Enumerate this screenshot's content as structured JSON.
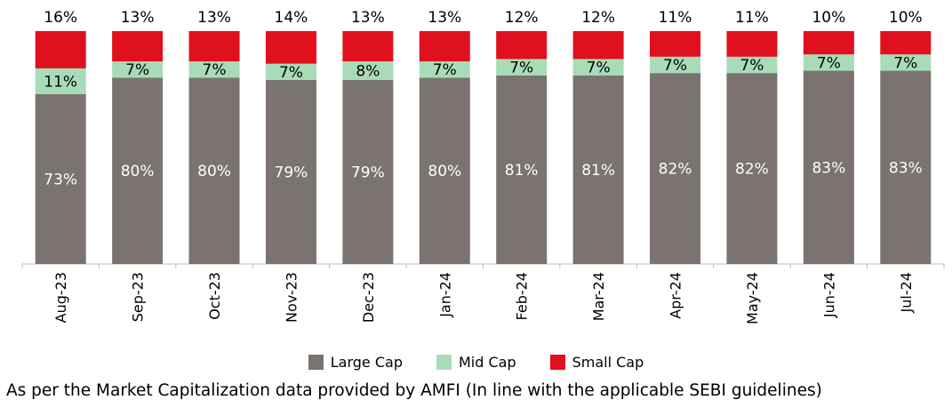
{
  "chart_data": {
    "type": "bar",
    "stacked": true,
    "categories": [
      "Aug-23",
      "Sep-23",
      "Oct-23",
      "Nov-23",
      "Dec-23",
      "Jan-24",
      "Feb-24",
      "Mar-24",
      "Apr-24",
      "May-24",
      "Jun-24",
      "Jul-24"
    ],
    "series": [
      {
        "name": "Large Cap",
        "color": "#7a736f",
        "values": [
          73,
          80,
          80,
          79,
          79,
          80,
          81,
          81,
          82,
          82,
          83,
          83
        ]
      },
      {
        "name": "Mid Cap",
        "color": "#a8dbb8",
        "values": [
          11,
          7,
          7,
          7,
          8,
          7,
          7,
          7,
          7,
          7,
          7,
          7
        ]
      },
      {
        "name": "Small Cap",
        "color": "#e0101e",
        "values": [
          16,
          13,
          13,
          14,
          13,
          13,
          12,
          12,
          11,
          11,
          10,
          10
        ]
      }
    ],
    "data_label_format": "{v}%",
    "title": "",
    "xlabel": "",
    "ylabel": "",
    "ylim": [
      0,
      100
    ],
    "grid": false,
    "legend_position": "bottom"
  },
  "footnote": "As per the Market Capitalization data provided by AMFI (In line with the applicable SEBI guidelines)"
}
